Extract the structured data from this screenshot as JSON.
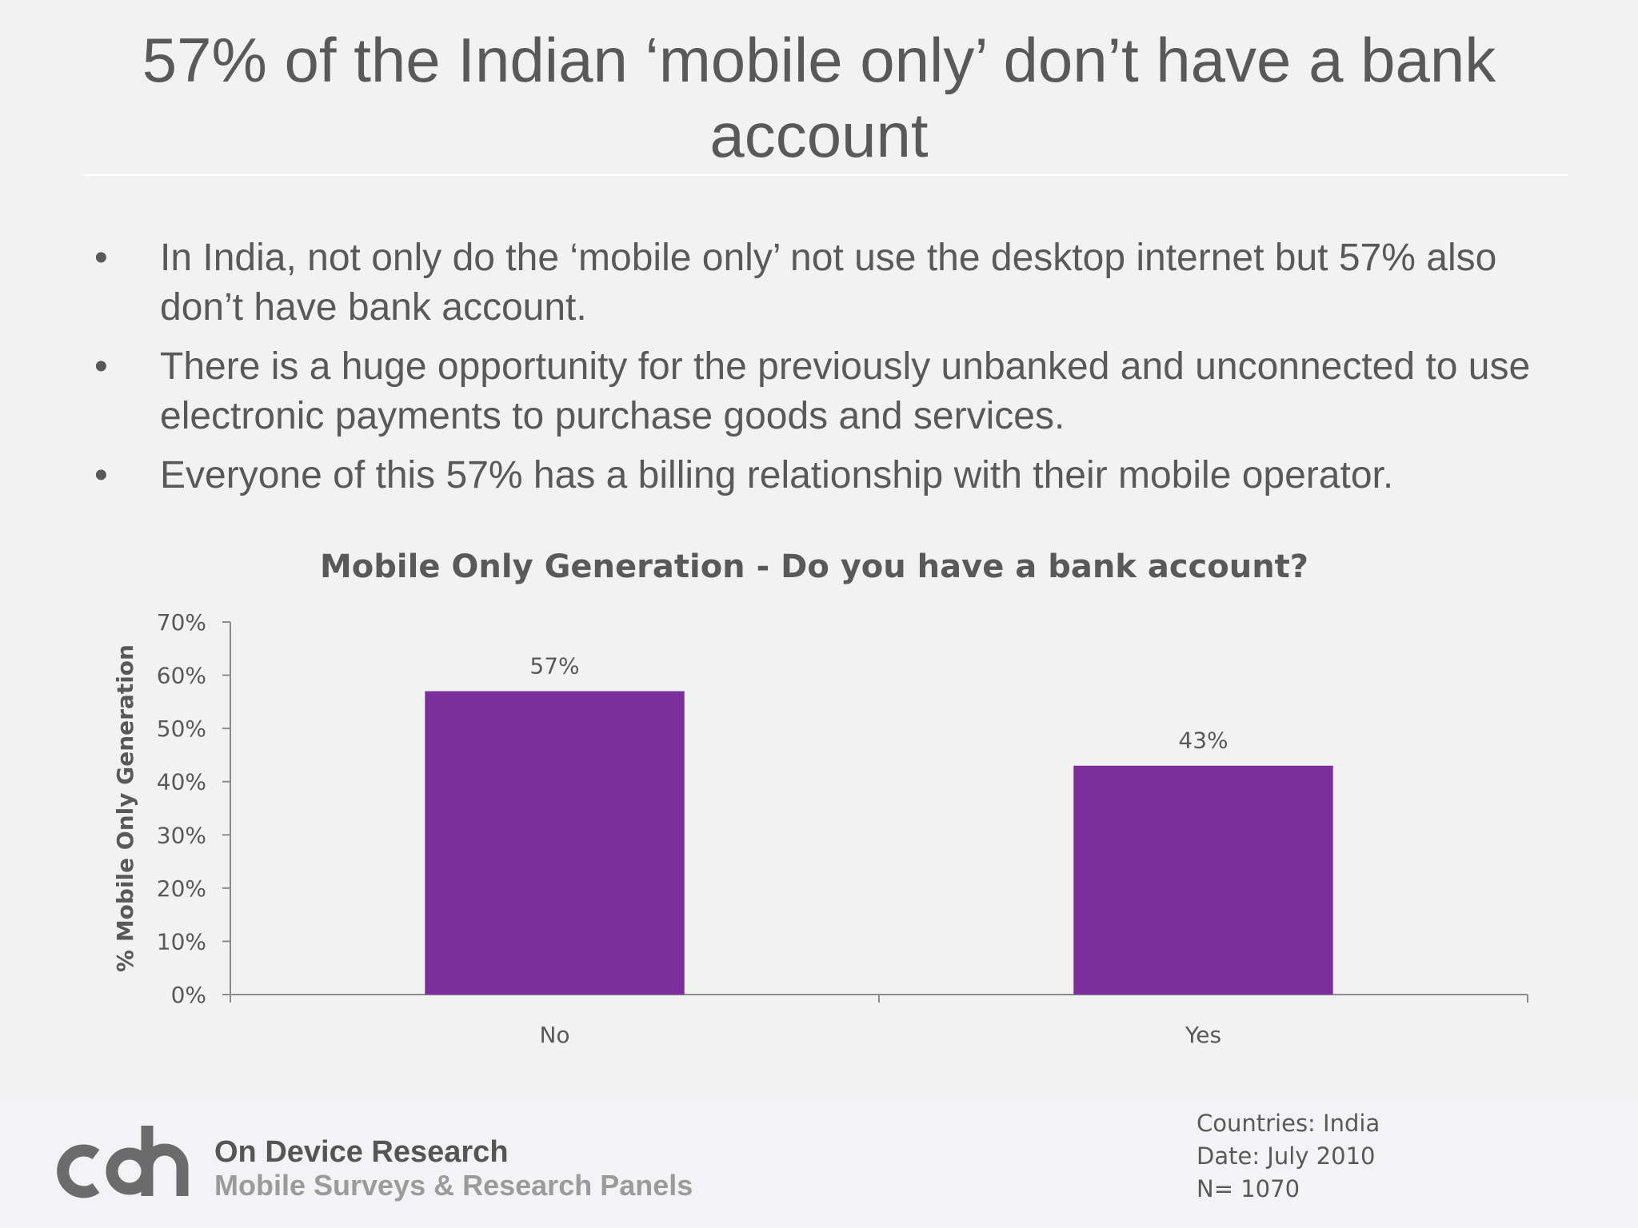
{
  "slide": {
    "title": "57% of the Indian ‘mobile only’ don’t have a bank account",
    "bullets": [
      "In India, not only do the ‘mobile only’ not use the desktop internet but 57% also don’t have bank account.",
      "There is a huge opportunity for the previously unbanked and unconnected to use electronic payments to purchase goods and services.",
      "Everyone of this 57% has a billing relationship with their mobile operator."
    ],
    "bullet_glyph": "•"
  },
  "chart_data": {
    "type": "bar",
    "title": "Mobile Only Generation - Do you have a bank account?",
    "xlabel": "",
    "ylabel": "% Mobile Only Generation",
    "categories": [
      "No",
      "Yes"
    ],
    "values": [
      57,
      43
    ],
    "data_labels": [
      "57%",
      "43%"
    ],
    "ylim": [
      0,
      70
    ],
    "yticks": [
      "0%",
      "10%",
      "20%",
      "30%",
      "40%",
      "50%",
      "60%",
      "70%"
    ],
    "ytick_values": [
      0,
      10,
      20,
      30,
      40,
      50,
      60,
      70
    ],
    "grid": false,
    "legend": "none",
    "bar_color": "#7b2f9b"
  },
  "footer": {
    "brand_name": "On Device Research",
    "brand_tagline": "Mobile Surveys & Research Panels",
    "meta": [
      "Countries: India",
      "Date:  July 2010",
      "N= 1070"
    ]
  }
}
